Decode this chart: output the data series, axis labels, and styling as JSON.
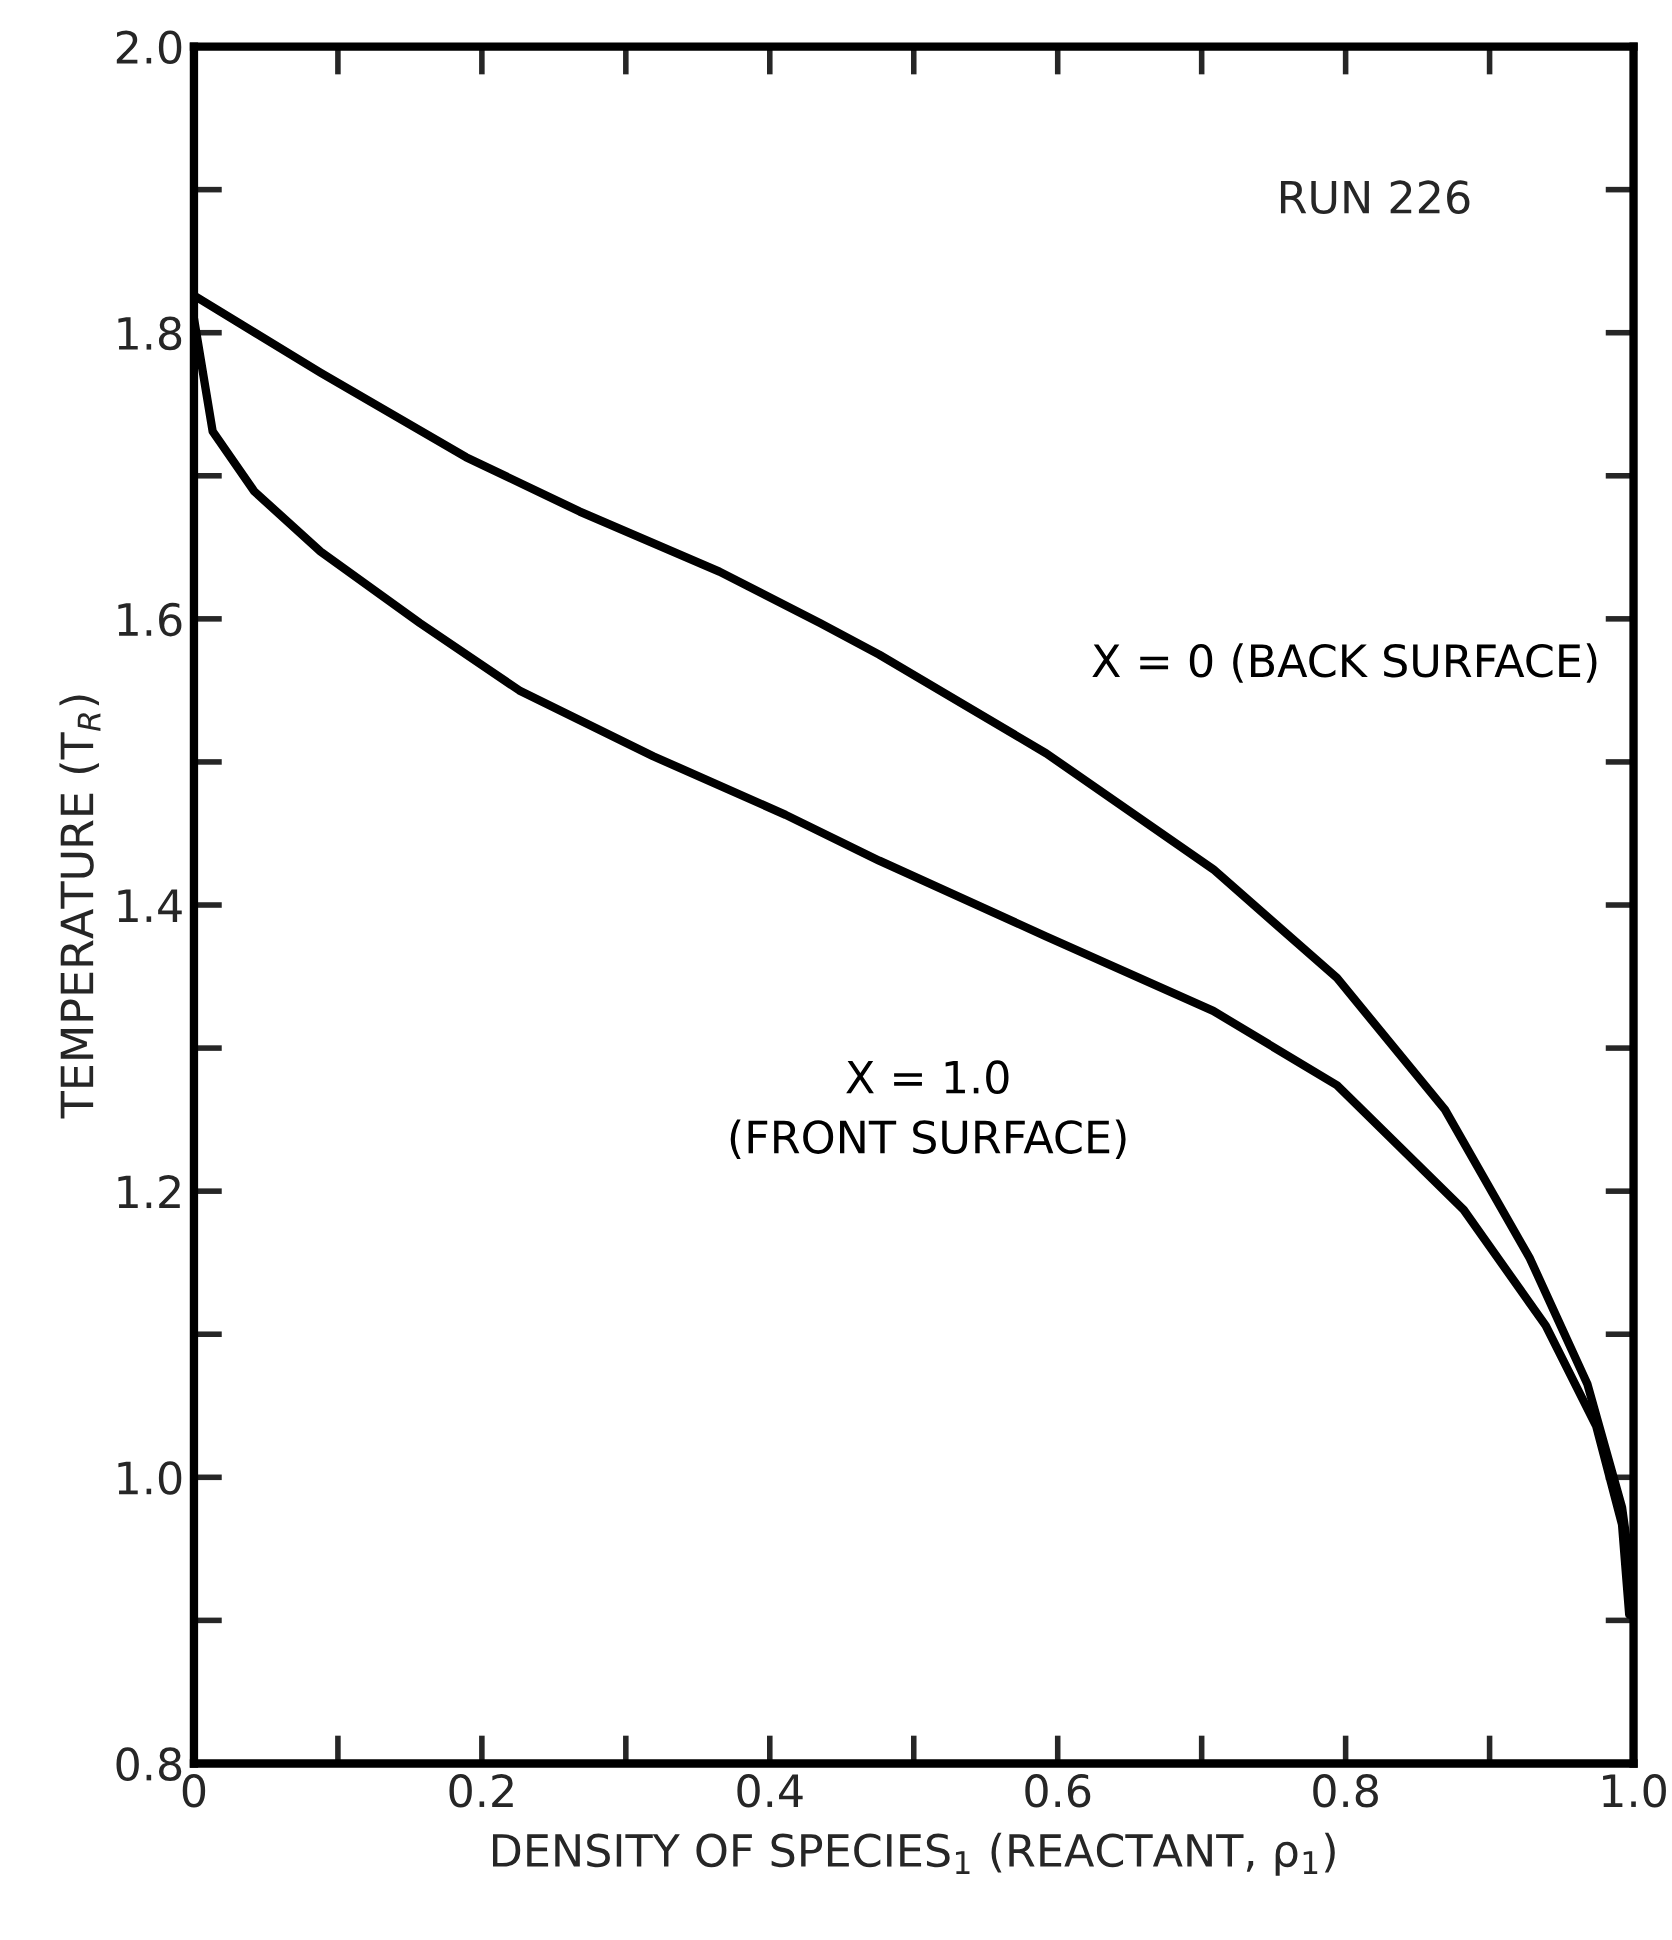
{
  "chart_data": {
    "type": "line",
    "xlabel": "DENSITY OF SPECIES$_{1}$ (REACTANT, ρ$_{1}$)",
    "ylabel": "TEMPERATURE (T$_{R}$)",
    "annotations": [
      "RUN 226"
    ],
    "xlim": [
      0,
      1.0
    ],
    "ylim": [
      0.8,
      2.0
    ],
    "xticks": [
      0,
      {
        "value": 0.1,
        "label": null
      },
      0.2,
      {
        "value": 0.3,
        "label": null
      },
      0.4,
      {
        "value": 0.5,
        "label": null
      },
      0.6,
      {
        "value": 0.7,
        "label": null
      },
      0.8,
      {
        "value": 0.9,
        "label": null
      },
      {
        "value": 1.0,
        "label": "1.0"
      }
    ],
    "yticks": [
      0.8,
      {
        "value": 0.9,
        "label": null
      },
      {
        "value": 1.0,
        "label": "1.0"
      },
      {
        "value": 1.1,
        "label": null
      },
      1.2,
      {
        "value": 1.3,
        "label": null
      },
      1.4,
      {
        "value": 1.5,
        "label": null
      },
      1.6,
      {
        "value": 1.7,
        "label": null
      },
      1.8,
      {
        "value": 1.9,
        "label": null
      },
      {
        "value": 2.0,
        "label": "2.0"
      }
    ],
    "grid": false,
    "legend": false,
    "marker": "none",
    "line_style": "solid",
    "series": [
      {
        "name": "X = 0 (BACK SURFACE)",
        "color": "#000000",
        "x": [
          0,
          0.088,
          0.189,
          0.268,
          0.365,
          0.435,
          0.476,
          0.592,
          0.708,
          0.794,
          0.869,
          0.928,
          0.968,
          0.992,
          1.0
        ],
        "values": [
          1.826,
          1.772,
          1.713,
          1.675,
          1.633,
          1.597,
          1.575,
          1.506,
          1.425,
          1.349,
          1.257,
          1.153,
          1.065,
          0.979,
          0.921
        ]
      },
      {
        "name": "X = 1.0\n(FRONT SURFACE)",
        "color": "#000000",
        "x": [
          0,
          0.013,
          0.042,
          0.088,
          0.157,
          0.226,
          0.319,
          0.411,
          0.476,
          0.592,
          0.708,
          0.794,
          0.882,
          0.939,
          0.974,
          0.992,
          0.997
        ],
        "values": [
          1.81,
          1.731,
          1.689,
          1.647,
          1.597,
          1.55,
          1.504,
          1.463,
          1.431,
          1.378,
          1.326,
          1.274,
          1.187,
          1.106,
          1.036,
          0.967,
          0.904
        ]
      }
    ]
  }
}
